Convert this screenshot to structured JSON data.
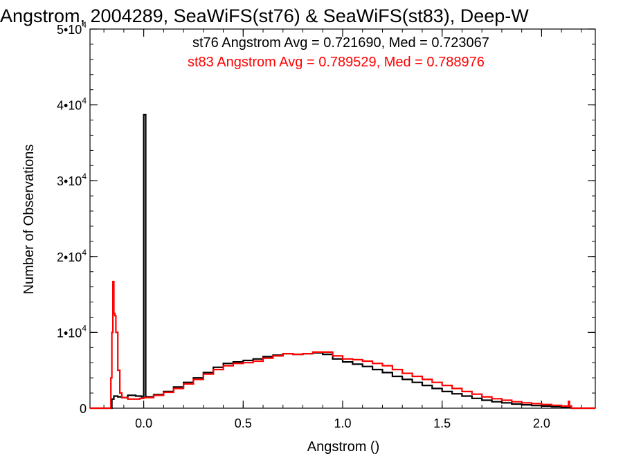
{
  "chart_data": {
    "type": "line",
    "title": "Angstrom, 2004289, SeaWiFS(st76) & SeaWiFS(st83), Deep-W",
    "xlabel": "Angstrom ()",
    "ylabel": "Number of Observations",
    "xlim": [
      -0.27,
      2.27
    ],
    "ylim": [
      0,
      50000
    ],
    "grid": false,
    "legend_placement": "top-right",
    "x_ticks": [
      {
        "value": 0.0,
        "label": "0.0"
      },
      {
        "value": 0.5,
        "label": "0.5"
      },
      {
        "value": 1.0,
        "label": "1.0"
      },
      {
        "value": 1.5,
        "label": "1.5"
      },
      {
        "value": 2.0,
        "label": "2.0"
      }
    ],
    "y_ticks": [
      {
        "value": 0,
        "mant": "0",
        "exp": ""
      },
      {
        "value": 10000,
        "mant": "1•10",
        "exp": "4"
      },
      {
        "value": 20000,
        "mant": "2•10",
        "exp": "4"
      },
      {
        "value": 30000,
        "mant": "3•10",
        "exp": "4"
      },
      {
        "value": 40000,
        "mant": "4•10",
        "exp": "4"
      },
      {
        "value": 50000,
        "mant": "5•10",
        "exp": "4"
      }
    ],
    "x_minor_step": 0.1,
    "y_minor_step": 2000,
    "series": [
      {
        "name": "st76",
        "color": "#000000",
        "annotation": "st76 Angstrom Avg = 0.721690, Med = 0.723067",
        "points": [
          [
            -0.27,
            0
          ],
          [
            -0.17,
            0
          ],
          [
            -0.16,
            1200
          ],
          [
            -0.15,
            1600
          ],
          [
            -0.13,
            1500
          ],
          [
            -0.11,
            1400
          ],
          [
            -0.08,
            1700
          ],
          [
            -0.04,
            1600
          ],
          [
            -0.01,
            1500
          ],
          [
            0.0,
            38700
          ],
          [
            0.01,
            1500
          ],
          [
            0.05,
            1800
          ],
          [
            0.1,
            2200
          ],
          [
            0.15,
            2800
          ],
          [
            0.2,
            3400
          ],
          [
            0.25,
            4000
          ],
          [
            0.3,
            4700
          ],
          [
            0.35,
            5400
          ],
          [
            0.4,
            5900
          ],
          [
            0.45,
            6100
          ],
          [
            0.5,
            6300
          ],
          [
            0.55,
            6500
          ],
          [
            0.6,
            6800
          ],
          [
            0.65,
            7000
          ],
          [
            0.7,
            7200
          ],
          [
            0.75,
            7100
          ],
          [
            0.8,
            7200
          ],
          [
            0.85,
            7300
          ],
          [
            0.9,
            7100
          ],
          [
            0.95,
            6500
          ],
          [
            1.0,
            6100
          ],
          [
            1.05,
            5800
          ],
          [
            1.1,
            5500
          ],
          [
            1.15,
            5100
          ],
          [
            1.2,
            4700
          ],
          [
            1.25,
            4200
          ],
          [
            1.3,
            3800
          ],
          [
            1.35,
            3400
          ],
          [
            1.4,
            3000
          ],
          [
            1.45,
            2600
          ],
          [
            1.5,
            2200
          ],
          [
            1.55,
            1900
          ],
          [
            1.6,
            1600
          ],
          [
            1.65,
            1300
          ],
          [
            1.7,
            1050
          ],
          [
            1.75,
            850
          ],
          [
            1.8,
            700
          ],
          [
            1.85,
            550
          ],
          [
            1.9,
            450
          ],
          [
            1.95,
            350
          ],
          [
            2.0,
            280
          ],
          [
            2.05,
            200
          ],
          [
            2.1,
            120
          ],
          [
            2.14,
            60
          ],
          [
            2.15,
            0
          ],
          [
            2.27,
            0
          ]
        ]
      },
      {
        "name": "st83",
        "color": "#ff0000",
        "annotation": "st83 Angstrom Avg = 0.789529, Med = 0.788976",
        "points": [
          [
            -0.27,
            0
          ],
          [
            -0.17,
            0
          ],
          [
            -0.165,
            4000
          ],
          [
            -0.16,
            10000
          ],
          [
            -0.155,
            16700
          ],
          [
            -0.15,
            12500
          ],
          [
            -0.145,
            12200
          ],
          [
            -0.14,
            10000
          ],
          [
            -0.13,
            5000
          ],
          [
            -0.12,
            2000
          ],
          [
            -0.11,
            1400
          ],
          [
            -0.08,
            1200
          ],
          [
            -0.05,
            1200
          ],
          [
            -0.02,
            1300
          ],
          [
            0.0,
            1400
          ],
          [
            0.05,
            1700
          ],
          [
            0.1,
            2100
          ],
          [
            0.15,
            2600
          ],
          [
            0.2,
            3200
          ],
          [
            0.25,
            3800
          ],
          [
            0.3,
            4500
          ],
          [
            0.35,
            5100
          ],
          [
            0.4,
            5600
          ],
          [
            0.45,
            5900
          ],
          [
            0.5,
            6000
          ],
          [
            0.55,
            6200
          ],
          [
            0.6,
            6600
          ],
          [
            0.65,
            6900
          ],
          [
            0.7,
            7200
          ],
          [
            0.75,
            7100
          ],
          [
            0.8,
            7200
          ],
          [
            0.85,
            7400
          ],
          [
            0.9,
            7400
          ],
          [
            0.95,
            6900
          ],
          [
            1.0,
            6500
          ],
          [
            1.05,
            6400
          ],
          [
            1.1,
            6200
          ],
          [
            1.15,
            5900
          ],
          [
            1.2,
            5600
          ],
          [
            1.25,
            5100
          ],
          [
            1.3,
            4600
          ],
          [
            1.35,
            4200
          ],
          [
            1.4,
            3800
          ],
          [
            1.45,
            3400
          ],
          [
            1.5,
            3000
          ],
          [
            1.55,
            2600
          ],
          [
            1.6,
            2200
          ],
          [
            1.65,
            1850
          ],
          [
            1.7,
            1500
          ],
          [
            1.75,
            1250
          ],
          [
            1.8,
            1050
          ],
          [
            1.85,
            850
          ],
          [
            1.9,
            700
          ],
          [
            1.95,
            600
          ],
          [
            2.0,
            480
          ],
          [
            2.05,
            380
          ],
          [
            2.1,
            280
          ],
          [
            2.13,
            250
          ],
          [
            2.135,
            900
          ],
          [
            2.14,
            300
          ],
          [
            2.15,
            0
          ],
          [
            2.27,
            0
          ]
        ]
      }
    ]
  }
}
